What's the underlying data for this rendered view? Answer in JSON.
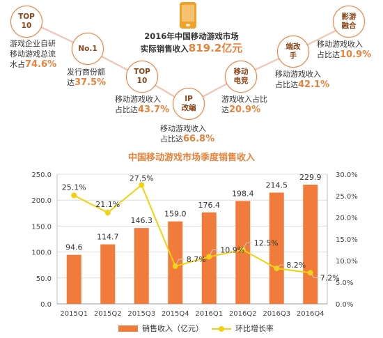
{
  "badges": [
    {
      "label": "TOP\n10",
      "pre": "游戏企业自研\n移动游戏总流\n水占",
      "pct": "74.6%"
    },
    {
      "label": "No.1",
      "pre": "发行商份额\n达",
      "pct": "37.5%"
    },
    {
      "label": "TOP\n10",
      "pre": "移动游戏收入\n占比达",
      "pct": "43.7%"
    },
    {
      "label": "IP\n改编",
      "pre": "移动游戏收入\n占比达",
      "pct": "66.8%"
    },
    {
      "label": "移动\n电竞",
      "pre": "游戏收入占比\n达",
      "pct": "20.9%"
    },
    {
      "label": "端改\n手",
      "pre": "移动游戏收入\n占比达",
      "pct": "42.1%"
    },
    {
      "label": "影游\n融合",
      "pre": "移动游戏收入\n占比达",
      "pct": "10.9%"
    }
  ],
  "headline": {
    "line1": "2016年中国移动游戏市场",
    "line2": "实际销售收入",
    "amount": "819.2亿元"
  },
  "colors": {
    "accent": "#e8823a",
    "bar": "#f07b3a",
    "line": "#f2d20f",
    "connector": "#f3c3b4"
  },
  "chart_data": {
    "type": "bar",
    "title": "中国移动游戏市场季度销售收入",
    "categories": [
      "2015Q1",
      "2015Q2",
      "2015Q3",
      "2015Q4",
      "2016Q1",
      "2016Q2",
      "2016Q3",
      "2016Q4"
    ],
    "series": [
      {
        "name": "销售收入（亿元）",
        "type": "bar",
        "axis": "left",
        "values": [
          94.6,
          114.7,
          146.3,
          159.0,
          176.4,
          198.4,
          214.5,
          229.9
        ]
      },
      {
        "name": "环比增长率",
        "type": "line",
        "axis": "right",
        "values": [
          25.1,
          21.1,
          27.5,
          8.7,
          10.9,
          12.5,
          8.2,
          7.2
        ]
      }
    ],
    "bar_labels": [
      "94.6",
      "114.7",
      "146.3",
      "159.0",
      "176.4",
      "198.4",
      "214.5",
      "229.9"
    ],
    "line_labels": [
      "25.1%",
      "21.1%",
      "27.5%",
      "8.7%",
      "10.9%",
      "12.5%",
      "8.2%",
      "7.2%"
    ],
    "ylim_left": [
      0,
      250
    ],
    "yticks_left": [
      "0.0",
      "50.0",
      "100.0",
      "150.0",
      "200.0",
      "250.0"
    ],
    "ylim_right": [
      0,
      30
    ],
    "yticks_right": [
      "0.0%",
      "5.0%",
      "10.0%",
      "15.0%",
      "20.0%",
      "25.0%",
      "30.0%"
    ],
    "grid": true,
    "legend": "bottom"
  }
}
